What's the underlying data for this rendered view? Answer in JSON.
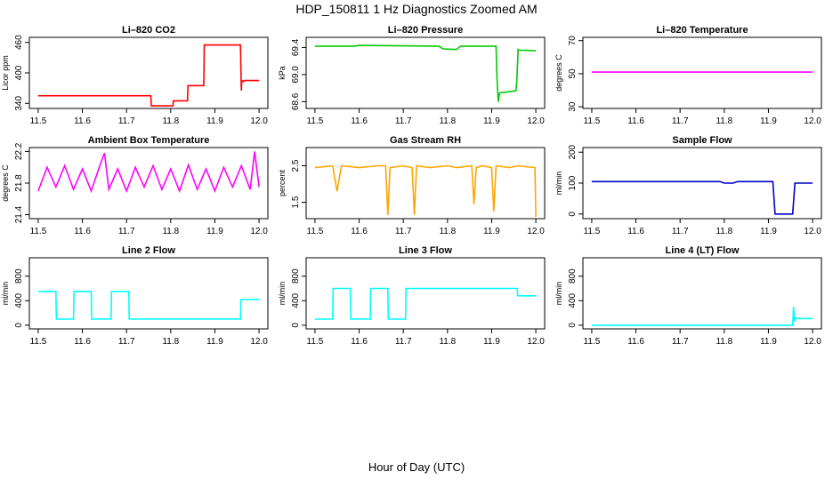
{
  "main_title": "HDP_150811  1 Hz Diagnostics Zoomed AM",
  "x_caption": "Hour of Day (UTC)",
  "chart_data": [
    {
      "type": "line",
      "title": "Li–820 CO2",
      "ylabel": "Licor ppm",
      "color": "#ff0000",
      "xlim": [
        11.48,
        12.02
      ],
      "ylim": [
        330,
        470
      ],
      "xticks": [
        11.5,
        11.6,
        11.7,
        11.8,
        11.9,
        12.0
      ],
      "xticklabels": [
        "11.5",
        "11.6",
        "11.7",
        "11.8",
        "11.9",
        "12.0"
      ],
      "yticks": [
        340,
        400,
        460
      ],
      "yticklabels": [
        "340",
        "400",
        "460"
      ],
      "x": [
        11.5,
        11.755,
        11.756,
        11.805,
        11.806,
        11.838,
        11.839,
        11.875,
        11.876,
        11.958,
        11.96,
        11.961,
        11.965,
        11.966,
        12.0
      ],
      "y": [
        355,
        355,
        335,
        335,
        345,
        345,
        375,
        375,
        455,
        455,
        365,
        385,
        383,
        385,
        385
      ]
    },
    {
      "type": "line",
      "title": "Li–820 Pressure",
      "ylabel": "kPa",
      "color": "#00cc00",
      "xlim": [
        11.48,
        12.02
      ],
      "ylim": [
        68.5,
        69.55
      ],
      "xticks": [
        11.5,
        11.6,
        11.7,
        11.8,
        11.9,
        12.0
      ],
      "xticklabels": [
        "11.5",
        "11.6",
        "11.7",
        "11.8",
        "11.9",
        "12.0"
      ],
      "yticks": [
        68.6,
        69.0,
        69.4
      ],
      "yticklabels": [
        "68.6",
        "69.0",
        "69.4"
      ],
      "x": [
        11.5,
        11.59,
        11.6,
        11.78,
        11.79,
        11.82,
        11.83,
        11.91,
        11.912,
        11.915,
        11.918,
        11.955,
        11.957,
        11.96,
        11.962,
        11.97,
        12.0
      ],
      "y": [
        69.42,
        69.42,
        69.43,
        69.42,
        69.38,
        69.37,
        69.42,
        69.42,
        68.95,
        68.6,
        68.73,
        68.76,
        68.9,
        69.37,
        69.36,
        69.36,
        69.35
      ]
    },
    {
      "type": "line",
      "title": "Li–820 Temperature",
      "ylabel": "degrees C",
      "color": "#ff00ff",
      "xlim": [
        11.48,
        12.02
      ],
      "ylim": [
        29,
        72
      ],
      "xticks": [
        11.5,
        11.6,
        11.7,
        11.8,
        11.9,
        12.0
      ],
      "xticklabels": [
        "11.5",
        "11.6",
        "11.7",
        "11.8",
        "11.9",
        "12.0"
      ],
      "yticks": [
        30,
        50,
        70
      ],
      "yticklabels": [
        "30",
        "50",
        "70"
      ],
      "x": [
        11.5,
        12.0
      ],
      "y": [
        51,
        51
      ]
    },
    {
      "type": "line",
      "title": "Ambient Box Temperature",
      "ylabel": "degrees C",
      "color": "#ff00ff",
      "xlim": [
        11.48,
        12.02
      ],
      "ylim": [
        21.35,
        22.25
      ],
      "xticks": [
        11.5,
        11.6,
        11.7,
        11.8,
        11.9,
        12.0
      ],
      "xticklabels": [
        "11.5",
        "11.6",
        "11.7",
        "11.8",
        "11.9",
        "12.0"
      ],
      "yticks": [
        21.4,
        21.8,
        22.2
      ],
      "yticklabels": [
        "21.4",
        "21.8",
        "22.2"
      ],
      "x": [
        11.5,
        11.52,
        11.54,
        11.56,
        11.58,
        11.6,
        11.62,
        11.64,
        11.65,
        11.66,
        11.68,
        11.7,
        11.72,
        11.74,
        11.76,
        11.78,
        11.8,
        11.82,
        11.84,
        11.86,
        11.88,
        11.9,
        11.92,
        11.94,
        11.96,
        11.98,
        11.99,
        12.0
      ],
      "y": [
        21.7,
        22.0,
        21.75,
        22.02,
        21.72,
        21.98,
        21.7,
        22.03,
        22.18,
        21.72,
        21.98,
        21.7,
        22.0,
        21.75,
        22.02,
        21.72,
        21.98,
        21.7,
        22.03,
        21.72,
        21.98,
        21.7,
        22.0,
        21.75,
        22.02,
        21.72,
        22.2,
        21.75
      ]
    },
    {
      "type": "line",
      "title": "Gas Stream RH",
      "ylabel": "percent",
      "color": "#ffa500",
      "xlim": [
        11.48,
        12.02
      ],
      "ylim": [
        1.05,
        3.0
      ],
      "xticks": [
        11.5,
        11.6,
        11.7,
        11.8,
        11.9,
        12.0
      ],
      "xticklabels": [
        "11.5",
        "11.6",
        "11.7",
        "11.8",
        "11.9",
        "12.0"
      ],
      "yticks": [
        1.5,
        2.5
      ],
      "yticklabels": [
        "1.5",
        "2.5"
      ],
      "x": [
        11.5,
        11.54,
        11.55,
        11.56,
        11.6,
        11.64,
        11.66,
        11.665,
        11.67,
        11.7,
        11.72,
        11.725,
        11.73,
        11.76,
        11.8,
        11.82,
        11.855,
        11.86,
        11.865,
        11.88,
        11.9,
        11.905,
        11.91,
        11.94,
        11.96,
        11.998,
        12.0
      ],
      "y": [
        2.45,
        2.5,
        1.8,
        2.5,
        2.45,
        2.5,
        2.5,
        1.15,
        2.45,
        2.5,
        2.45,
        1.15,
        2.5,
        2.45,
        2.5,
        2.45,
        2.5,
        1.45,
        2.45,
        2.5,
        2.45,
        1.25,
        2.5,
        2.45,
        2.5,
        2.45,
        1.1
      ]
    },
    {
      "type": "line",
      "title": "Sample Flow",
      "ylabel": "ml/min",
      "color": "#0000cc",
      "xlim": [
        11.48,
        12.02
      ],
      "ylim": [
        -15,
        215
      ],
      "xticks": [
        11.5,
        11.6,
        11.7,
        11.8,
        11.9,
        12.0
      ],
      "xticklabels": [
        "11.5",
        "11.6",
        "11.7",
        "11.8",
        "11.9",
        "12.0"
      ],
      "yticks": [
        0,
        100,
        200
      ],
      "yticklabels": [
        "0",
        "100",
        "200"
      ],
      "x": [
        11.5,
        11.79,
        11.8,
        11.82,
        11.83,
        11.91,
        11.915,
        11.955,
        11.96,
        11.97,
        12.0
      ],
      "y": [
        105,
        105,
        100,
        100,
        105,
        105,
        0,
        0,
        100,
        100,
        100
      ]
    },
    {
      "type": "line",
      "title": "Line 2 Flow",
      "ylabel": "ml/min",
      "color": "#00ffff",
      "xlim": [
        11.48,
        12.02
      ],
      "ylim": [
        -60,
        1100
      ],
      "xticks": [
        11.5,
        11.6,
        11.7,
        11.8,
        11.9,
        12.0
      ],
      "xticklabels": [
        "11.5",
        "11.6",
        "11.7",
        "11.8",
        "11.9",
        "12.0"
      ],
      "yticks": [
        0,
        400,
        800
      ],
      "yticklabels": [
        "0",
        "400",
        "800"
      ],
      "x": [
        11.5,
        11.54,
        11.541,
        11.58,
        11.581,
        11.62,
        11.621,
        11.665,
        11.666,
        11.705,
        11.706,
        11.958,
        11.959,
        12.0
      ],
      "y": [
        550,
        550,
        100,
        100,
        550,
        550,
        100,
        100,
        550,
        550,
        100,
        100,
        420,
        420
      ]
    },
    {
      "type": "line",
      "title": "Line 3 Flow",
      "ylabel": "ml/min",
      "color": "#00ffff",
      "xlim": [
        11.48,
        12.02
      ],
      "ylim": [
        -60,
        1100
      ],
      "xticks": [
        11.5,
        11.6,
        11.7,
        11.8,
        11.9,
        12.0
      ],
      "xticklabels": [
        "11.5",
        "11.6",
        "11.7",
        "11.8",
        "11.9",
        "12.0"
      ],
      "yticks": [
        0,
        400,
        800
      ],
      "yticklabels": [
        "0",
        "400",
        "800"
      ],
      "x": [
        11.5,
        11.54,
        11.541,
        11.58,
        11.581,
        11.625,
        11.626,
        11.665,
        11.666,
        11.705,
        11.706,
        11.958,
        11.959,
        12.0
      ],
      "y": [
        100,
        100,
        600,
        600,
        100,
        100,
        600,
        600,
        100,
        100,
        600,
        600,
        480,
        480
      ]
    },
    {
      "type": "line",
      "title": "Line 4 (LT) Flow",
      "ylabel": "ml/min",
      "color": "#00ffff",
      "xlim": [
        11.48,
        12.02
      ],
      "ylim": [
        -60,
        1100
      ],
      "xticks": [
        11.5,
        11.6,
        11.7,
        11.8,
        11.9,
        12.0
      ],
      "xticklabels": [
        "11.5",
        "11.6",
        "11.7",
        "11.8",
        "11.9",
        "12.0"
      ],
      "yticks": [
        0,
        400,
        800
      ],
      "yticklabels": [
        "0",
        "400",
        "800"
      ],
      "x": [
        11.5,
        11.955,
        11.957,
        11.959,
        11.961,
        11.965,
        12.0
      ],
      "y": [
        0,
        0,
        300,
        60,
        120,
        110,
        110
      ]
    }
  ]
}
